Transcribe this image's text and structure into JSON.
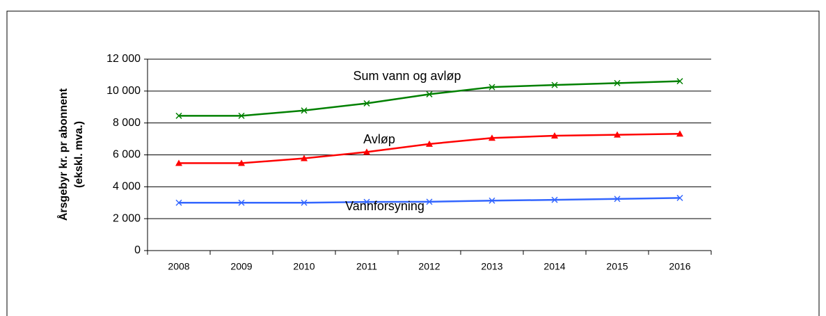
{
  "chart_data": {
    "type": "line",
    "y_label": [
      "Årsgebyr kr. pr abonnent",
      "(ekskl. mva.)"
    ],
    "categories": [
      "2008",
      "2009",
      "2010",
      "2011",
      "2012",
      "2013",
      "2014",
      "2015",
      "2016"
    ],
    "series": [
      {
        "name": "Sum vann og avløp",
        "color": "#008000",
        "marker": "x",
        "values": [
          8450,
          8450,
          8780,
          9230,
          9800,
          10250,
          10380,
          10500,
          10620
        ]
      },
      {
        "name": "Avløp",
        "color": "#ff0000",
        "marker": "triangle",
        "values": [
          5480,
          5480,
          5780,
          6180,
          6680,
          7060,
          7200,
          7260,
          7320
        ]
      },
      {
        "name": "Vannforsyning",
        "color": "#3366ff",
        "marker": "x",
        "values": [
          3000,
          3000,
          3000,
          3050,
          3060,
          3130,
          3180,
          3240,
          3300
        ]
      }
    ],
    "ylim": [
      0,
      12000
    ],
    "yticks": [
      0,
      {
        "value": 2000,
        "label": "2 000"
      },
      {
        "value": 4000,
        "label": "4 000"
      },
      {
        "value": 6000,
        "label": "6 000"
      },
      {
        "value": 8000,
        "label": "8 000"
      },
      {
        "value": 10000,
        "label": "10 000"
      },
      {
        "value": 12000,
        "label": "12 000"
      }
    ],
    "grid": true
  }
}
